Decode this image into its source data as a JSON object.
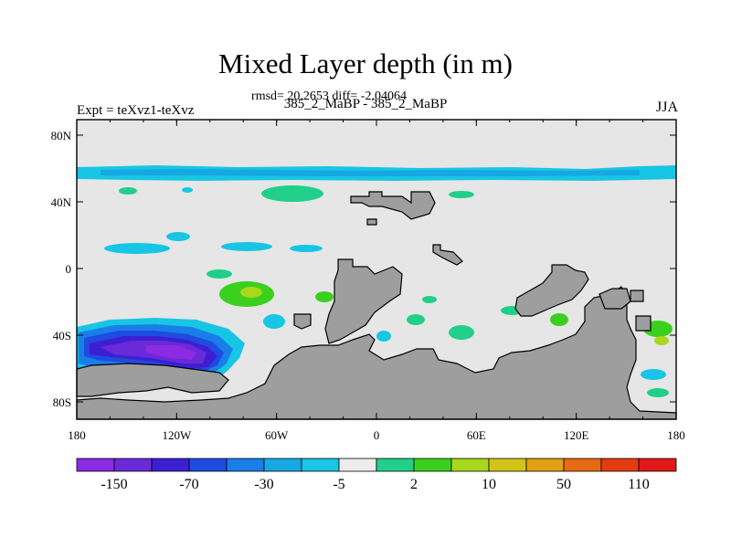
{
  "title": "Mixed Layer depth (in m)",
  "subtitle": "rmsd= 20.2653 diff= -2.04064",
  "case_label": "385_2_MaBP - 385_2_MaBP",
  "expt_label": "Expt = teXvz1-teXvz",
  "season_label": "JJA",
  "map": {
    "x_ticks": [
      "180",
      "120W",
      "60W",
      "0",
      "60E",
      "120E",
      "180"
    ],
    "y_ticks": [
      "80N",
      "40N",
      "0",
      "40S",
      "80S"
    ],
    "land_color": "#9e9e9e",
    "ocean_zero_color": "#e6e6e6"
  },
  "colorbar": {
    "colors": [
      "#8b2be2",
      "#6a2ad8",
      "#3d1fd2",
      "#1f4be0",
      "#1a7ee8",
      "#16a8e2",
      "#17c6e4",
      "#ececec",
      "#20d08a",
      "#3cd01e",
      "#a8d81c",
      "#d2c417",
      "#e0a012",
      "#e66a10",
      "#e43c10",
      "#e01818"
    ],
    "labels": [
      "-150",
      "-70",
      "-30",
      "-5",
      "2",
      "10",
      "50",
      "110"
    ]
  }
}
